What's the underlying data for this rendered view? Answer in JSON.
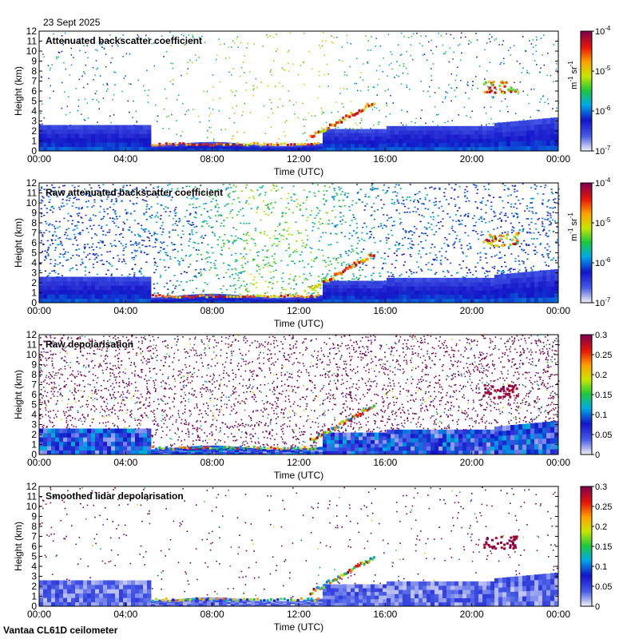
{
  "date": "23 Sept 2025",
  "footer": "Vantaa CL61D ceilometer",
  "chart_data": [
    {
      "type": "heatmap",
      "title": "Attenuated backscatter coefficient",
      "xlabel": "Time (UTC)",
      "ylabel": "Height (km)",
      "xticks": [
        "00:00",
        "04:00",
        "08:00",
        "12:00",
        "16:00",
        "20:00",
        "00:00"
      ],
      "yticks": [
        "0",
        "1",
        "2",
        "3",
        "4",
        "5",
        "6",
        "7",
        "8",
        "9",
        "10",
        "11",
        "12"
      ],
      "ylim": [
        0,
        12
      ],
      "xlim_hours": [
        0,
        24
      ],
      "colorbar": {
        "scale": "log",
        "range": [
          1e-07,
          0.0001
        ],
        "ticks": [
          {
            "base": "10",
            "exp": "-7",
            "value": 1e-07
          },
          {
            "base": "10",
            "exp": "-6",
            "value": 1e-06
          },
          {
            "base": "10",
            "exp": "-5",
            "value": 1e-05
          },
          {
            "base": "10",
            "exp": "-4",
            "value": 0.0001
          }
        ],
        "unit_text": [
          "m",
          "-1",
          " sr",
          "-1"
        ]
      },
      "colormap": "backscatter",
      "noise": "low"
    },
    {
      "type": "heatmap",
      "title": "Raw attenuated backscatter coefficient",
      "xlabel": "Time (UTC)",
      "ylabel": "Height (km)",
      "xticks": [
        "00:00",
        "04:00",
        "08:00",
        "12:00",
        "16:00",
        "20:00",
        "00:00"
      ],
      "yticks": [
        "0",
        "1",
        "2",
        "3",
        "4",
        "5",
        "6",
        "7",
        "8",
        "9",
        "10",
        "11",
        "12"
      ],
      "ylim": [
        0,
        12
      ],
      "xlim_hours": [
        0,
        24
      ],
      "colorbar": {
        "scale": "log",
        "range": [
          1e-07,
          0.0001
        ],
        "ticks": [
          {
            "base": "10",
            "exp": "-7",
            "value": 1e-07
          },
          {
            "base": "10",
            "exp": "-6",
            "value": 1e-06
          },
          {
            "base": "10",
            "exp": "-5",
            "value": 1e-05
          },
          {
            "base": "10",
            "exp": "-4",
            "value": 0.0001
          }
        ],
        "unit_text": [
          "m",
          "-1",
          " sr",
          "-1"
        ]
      },
      "colormap": "backscatter",
      "noise": "high"
    },
    {
      "type": "heatmap",
      "title": "Raw depolarisation",
      "xlabel": "Time (UTC)",
      "ylabel": "Height (km)",
      "xticks": [
        "00:00",
        "04:00",
        "08:00",
        "12:00",
        "16:00",
        "20:00",
        "00:00"
      ],
      "yticks": [
        "0",
        "1",
        "2",
        "3",
        "4",
        "5",
        "6",
        "7",
        "8",
        "9",
        "10",
        "11",
        "12"
      ],
      "ylim": [
        0,
        12
      ],
      "xlim_hours": [
        0,
        24
      ],
      "colorbar": {
        "scale": "linear",
        "range": [
          0,
          0.3
        ],
        "ticks": [
          {
            "label": "0",
            "value": 0
          },
          {
            "label": "0.05",
            "value": 0.05
          },
          {
            "label": "0.1",
            "value": 0.1
          },
          {
            "label": "0.15",
            "value": 0.15
          },
          {
            "label": "0.2",
            "value": 0.2
          },
          {
            "label": "0.25",
            "value": 0.25
          },
          {
            "label": "0.3",
            "value": 0.3
          }
        ]
      },
      "colormap": "depol",
      "noise": "raw"
    },
    {
      "type": "heatmap",
      "title": "Smoothed lidar depolarisation",
      "xlabel": "Time (UTC)",
      "ylabel": "Height (km)",
      "xticks": [
        "00:00",
        "04:00",
        "08:00",
        "12:00",
        "16:00",
        "20:00",
        "00:00"
      ],
      "yticks": [
        "0",
        "1",
        "2",
        "3",
        "4",
        "5",
        "6",
        "7",
        "8",
        "9",
        "10",
        "11",
        "12"
      ],
      "ylim": [
        0,
        12
      ],
      "xlim_hours": [
        0,
        24
      ],
      "colorbar": {
        "scale": "linear",
        "range": [
          0,
          0.3
        ],
        "ticks": [
          {
            "label": "0",
            "value": 0
          },
          {
            "label": "0.05",
            "value": 0.05
          },
          {
            "label": "0.1",
            "value": 0.1
          },
          {
            "label": "0.15",
            "value": 0.15
          },
          {
            "label": "0.2",
            "value": 0.2
          },
          {
            "label": "0.25",
            "value": 0.25
          },
          {
            "label": "0.3",
            "value": 0.3
          }
        ]
      },
      "colormap": "depol",
      "noise": "smoothed"
    }
  ]
}
